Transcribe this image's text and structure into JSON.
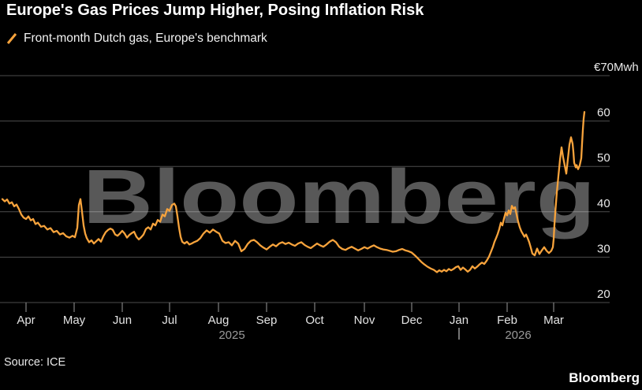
{
  "header": {
    "title": "Europe's Gas Prices Jump Higher, Posing Inflation Risk",
    "legend_label": "Front-month Dutch gas, Europe's benchmark"
  },
  "footer": {
    "source": "Source: ICE",
    "brand": "Bloomberg"
  },
  "watermark": "Bloomberg",
  "colors": {
    "line": "#F7A33C",
    "background": "#000000",
    "title_text": "#FFFFFF",
    "axis_text": "#E3E3E3",
    "year_text": "#9A9A9A",
    "watermark": "#585858"
  },
  "chart_data": {
    "type": "line",
    "title": "Europe's Gas Prices Jump Higher, Posing Inflation Risk",
    "series_name": "Front-month Dutch gas, Europe's benchmark",
    "y_unit": "EUR/MWh",
    "ylim": [
      20,
      70
    ],
    "grid": "horizontal",
    "y_axis": {
      "top_label": "€70Mwh",
      "top_value": 70,
      "tick_values": [
        60,
        50,
        40,
        30,
        20
      ],
      "tick_labels": [
        "60",
        "50",
        "40",
        "30",
        "20"
      ]
    },
    "x_axis": {
      "months": [
        "Apr",
        "May",
        "Jun",
        "Jul",
        "Aug",
        "Sep",
        "Oct",
        "Nov",
        "Dec",
        "Jan",
        "Feb",
        "Mar"
      ],
      "years": [
        "2025",
        "2026"
      ],
      "range_note": "late Mar 2025 through mid Mar 2026"
    },
    "points_format": "[x_pixel_position, price_eur_mwh]",
    "points": [
      [
        3,
        42.8
      ],
      [
        6,
        42.3
      ],
      [
        9,
        42.7
      ],
      [
        12,
        41.8
      ],
      [
        15,
        42.1
      ],
      [
        18,
        41.2
      ],
      [
        21,
        41.6
      ],
      [
        24,
        40.6
      ],
      [
        27,
        39.4
      ],
      [
        30,
        38.7
      ],
      [
        33,
        38.4
      ],
      [
        36,
        39.0
      ],
      [
        39,
        38.1
      ],
      [
        42,
        38.4
      ],
      [
        45,
        37.3
      ],
      [
        48,
        37.6
      ],
      [
        52,
        36.7
      ],
      [
        56,
        36.9
      ],
      [
        60,
        36.1
      ],
      [
        64,
        36.4
      ],
      [
        68,
        35.5
      ],
      [
        72,
        35.8
      ],
      [
        76,
        35.0
      ],
      [
        80,
        35.3
      ],
      [
        84,
        34.6
      ],
      [
        88,
        34.3
      ],
      [
        92,
        34.7
      ],
      [
        95,
        34.4
      ],
      [
        98,
        36.5
      ],
      [
        100,
        41.5
      ],
      [
        102,
        42.8
      ],
      [
        104,
        40.0
      ],
      [
        106,
        37.0
      ],
      [
        108,
        35.2
      ],
      [
        110,
        34.2
      ],
      [
        113,
        33.3
      ],
      [
        116,
        33.7
      ],
      [
        119,
        33.0
      ],
      [
        122,
        33.5
      ],
      [
        125,
        34.0
      ],
      [
        128,
        33.4
      ],
      [
        131,
        34.6
      ],
      [
        134,
        35.5
      ],
      [
        137,
        36.0
      ],
      [
        140,
        36.3
      ],
      [
        143,
        36.0
      ],
      [
        146,
        35.0
      ],
      [
        149,
        34.7
      ],
      [
        152,
        35.2
      ],
      [
        155,
        35.8
      ],
      [
        158,
        35.2
      ],
      [
        161,
        34.3
      ],
      [
        164,
        34.9
      ],
      [
        167,
        35.3
      ],
      [
        170,
        35.6
      ],
      [
        173,
        34.5
      ],
      [
        176,
        33.9
      ],
      [
        179,
        34.4
      ],
      [
        182,
        35.0
      ],
      [
        185,
        36.2
      ],
      [
        188,
        36.6
      ],
      [
        191,
        36.1
      ],
      [
        194,
        37.4
      ],
      [
        197,
        37.0
      ],
      [
        200,
        38.2
      ],
      [
        203,
        37.8
      ],
      [
        206,
        39.4
      ],
      [
        209,
        39.0
      ],
      [
        212,
        40.6
      ],
      [
        215,
        40.2
      ],
      [
        218,
        41.5
      ],
      [
        221,
        41.8
      ],
      [
        223,
        41.2
      ],
      [
        225,
        39.0
      ],
      [
        227,
        36.5
      ],
      [
        229,
        34.5
      ],
      [
        231,
        33.4
      ],
      [
        234,
        33.0
      ],
      [
        237,
        33.4
      ],
      [
        240,
        32.8
      ],
      [
        243,
        33.0
      ],
      [
        246,
        33.3
      ],
      [
        250,
        33.6
      ],
      [
        254,
        34.2
      ],
      [
        258,
        35.2
      ],
      [
        262,
        35.9
      ],
      [
        266,
        35.4
      ],
      [
        270,
        36.1
      ],
      [
        274,
        35.6
      ],
      [
        278,
        35.2
      ],
      [
        282,
        33.6
      ],
      [
        286,
        33.1
      ],
      [
        290,
        33.3
      ],
      [
        294,
        32.6
      ],
      [
        298,
        33.6
      ],
      [
        302,
        33.0
      ],
      [
        306,
        31.3
      ],
      [
        310,
        31.8
      ],
      [
        314,
        32.9
      ],
      [
        318,
        33.6
      ],
      [
        322,
        33.8
      ],
      [
        326,
        33.3
      ],
      [
        330,
        32.6
      ],
      [
        334,
        32.1
      ],
      [
        338,
        31.7
      ],
      [
        342,
        32.3
      ],
      [
        346,
        32.8
      ],
      [
        350,
        32.4
      ],
      [
        354,
        33.0
      ],
      [
        358,
        33.3
      ],
      [
        362,
        32.9
      ],
      [
        366,
        33.2
      ],
      [
        370,
        32.8
      ],
      [
        374,
        32.5
      ],
      [
        378,
        33.0
      ],
      [
        382,
        33.3
      ],
      [
        386,
        32.7
      ],
      [
        390,
        32.3
      ],
      [
        394,
        32.0
      ],
      [
        398,
        32.5
      ],
      [
        402,
        33.0
      ],
      [
        406,
        32.6
      ],
      [
        410,
        32.3
      ],
      [
        414,
        32.8
      ],
      [
        418,
        33.4
      ],
      [
        422,
        33.8
      ],
      [
        426,
        33.3
      ],
      [
        430,
        32.3
      ],
      [
        434,
        31.8
      ],
      [
        438,
        31.6
      ],
      [
        442,
        32.0
      ],
      [
        446,
        32.3
      ],
      [
        450,
        31.9
      ],
      [
        454,
        31.5
      ],
      [
        458,
        31.8
      ],
      [
        462,
        32.2
      ],
      [
        466,
        31.9
      ],
      [
        470,
        32.3
      ],
      [
        474,
        32.6
      ],
      [
        478,
        32.2
      ],
      [
        482,
        31.9
      ],
      [
        486,
        31.7
      ],
      [
        490,
        31.6
      ],
      [
        494,
        31.4
      ],
      [
        498,
        31.2
      ],
      [
        502,
        31.3
      ],
      [
        506,
        31.6
      ],
      [
        510,
        31.8
      ],
      [
        514,
        31.5
      ],
      [
        518,
        31.3
      ],
      [
        522,
        31.0
      ],
      [
        526,
        30.4
      ],
      [
        530,
        29.7
      ],
      [
        534,
        29.0
      ],
      [
        538,
        28.4
      ],
      [
        542,
        27.9
      ],
      [
        546,
        27.5
      ],
      [
        550,
        27.2
      ],
      [
        554,
        26.7
      ],
      [
        557,
        27.1
      ],
      [
        560,
        26.8
      ],
      [
        563,
        27.2
      ],
      [
        566,
        26.9
      ],
      [
        569,
        27.4
      ],
      [
        572,
        27.1
      ],
      [
        575,
        27.4
      ],
      [
        578,
        27.8
      ],
      [
        581,
        28.0
      ],
      [
        584,
        27.2
      ],
      [
        587,
        27.7
      ],
      [
        590,
        27.3
      ],
      [
        593,
        26.8
      ],
      [
        596,
        27.2
      ],
      [
        599,
        28.0
      ],
      [
        602,
        27.5
      ],
      [
        605,
        27.9
      ],
      [
        608,
        28.4
      ],
      [
        611,
        28.8
      ],
      [
        614,
        28.5
      ],
      [
        617,
        29.2
      ],
      [
        620,
        30.1
      ],
      [
        623,
        31.4
      ],
      [
        625,
        32.3
      ],
      [
        627,
        33.4
      ],
      [
        629,
        34.2
      ],
      [
        631,
        35.1
      ],
      [
        633,
        36.2
      ],
      [
        635,
        37.6
      ],
      [
        637,
        37.0
      ],
      [
        639,
        38.5
      ],
      [
        641,
        39.8
      ],
      [
        643,
        39.2
      ],
      [
        645,
        40.3
      ],
      [
        647,
        39.5
      ],
      [
        649,
        41.3
      ],
      [
        651,
        40.7
      ],
      [
        653,
        41.0
      ],
      [
        655,
        39.4
      ],
      [
        657,
        37.8
      ],
      [
        659,
        36.6
      ],
      [
        661,
        35.7
      ],
      [
        663,
        35.1
      ],
      [
        665,
        34.5
      ],
      [
        667,
        35.0
      ],
      [
        669,
        34.2
      ],
      [
        671,
        33.3
      ],
      [
        673,
        32.1
      ],
      [
        675,
        30.8
      ],
      [
        678,
        30.4
      ],
      [
        681,
        31.9
      ],
      [
        684,
        30.7
      ],
      [
        687,
        31.5
      ],
      [
        690,
        32.2
      ],
      [
        693,
        31.4
      ],
      [
        696,
        30.9
      ],
      [
        699,
        31.4
      ],
      [
        701,
        32.2
      ],
      [
        702,
        34.0
      ],
      [
        703,
        37.2
      ],
      [
        704,
        39.8
      ],
      [
        705,
        42.0
      ],
      [
        706,
        44.3
      ],
      [
        707,
        46.0
      ],
      [
        708,
        47.9
      ],
      [
        709,
        49.6
      ],
      [
        710,
        51.4
      ],
      [
        712,
        54.2
      ],
      [
        714,
        52.0
      ],
      [
        716,
        50.2
      ],
      [
        718,
        48.4
      ],
      [
        720,
        51.6
      ],
      [
        722,
        54.8
      ],
      [
        724,
        56.4
      ],
      [
        726,
        55.0
      ],
      [
        727,
        53.2
      ],
      [
        728,
        50.8
      ],
      [
        730,
        49.8
      ],
      [
        731,
        50.3
      ],
      [
        733,
        49.4
      ],
      [
        735,
        50.2
      ],
      [
        737,
        51.8
      ],
      [
        738,
        55.0
      ],
      [
        739,
        58.0
      ],
      [
        740,
        60.5
      ],
      [
        741,
        62.0
      ]
    ]
  }
}
